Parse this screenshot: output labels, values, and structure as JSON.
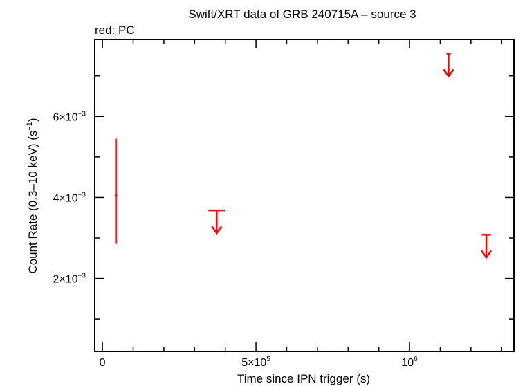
{
  "chart_data": {
    "type": "scatter",
    "title": "Swift/XRT data of GRB 240715A – source 3",
    "subtitle": "red: PC",
    "xlabel": "Time since IPN trigger (s)",
    "ylabel": "Count Rate (0.3–10 keV) (s",
    "ylabel_sup": "−1",
    "ylabel_tail": ")",
    "xlim": [
      -25000,
      1340000
    ],
    "ylim": [
      0.0002,
      0.0079
    ],
    "x_ticks": [
      {
        "value": 0,
        "label": "0",
        "sup": ""
      },
      {
        "value": 500000,
        "label": "5×10",
        "sup": "5"
      },
      {
        "value": 1000000,
        "label": "10",
        "sup": "6"
      }
    ],
    "y_ticks": [
      {
        "value": 0.002,
        "label": "2×10",
        "sup": "−3"
      },
      {
        "value": 0.004,
        "label": "4×10",
        "sup": "−3"
      },
      {
        "value": 0.006,
        "label": "6×10",
        "sup": "−3"
      }
    ],
    "color": "#ff0000",
    "points": [
      {
        "x": 44000,
        "y": 0.00405,
        "xerr": [
          4000,
          4000
        ],
        "yerr_low": 0.00285,
        "yerr_high": 0.00545,
        "upper_limit": false
      },
      {
        "x": 372000,
        "y": 0.00368,
        "xerr": [
          27000,
          27000
        ],
        "upper_limit": true
      },
      {
        "x": 1127000,
        "y": 0.00755,
        "xerr": [
          7000,
          7000
        ],
        "upper_limit": true
      },
      {
        "x": 1250000,
        "y": 0.00308,
        "xerr": [
          15000,
          15000
        ],
        "upper_limit": true
      }
    ]
  }
}
